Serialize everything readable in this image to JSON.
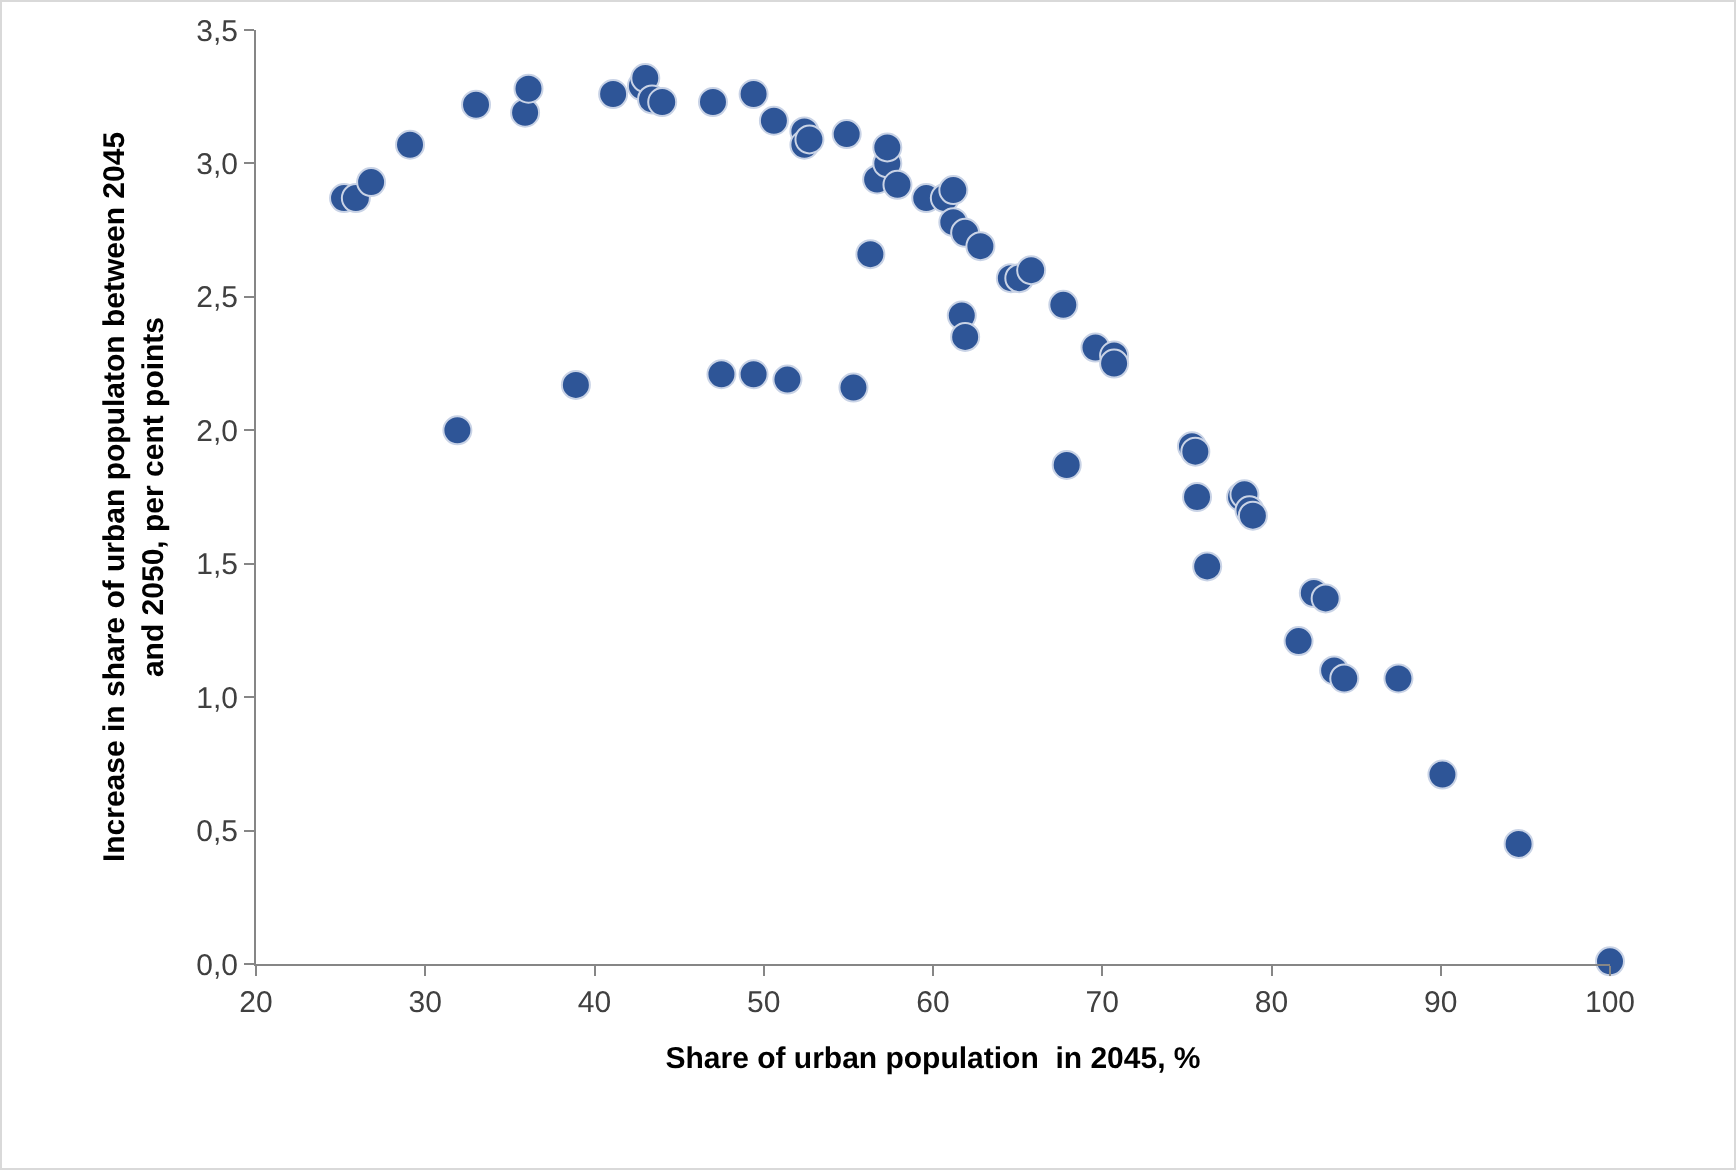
{
  "chart_data": {
    "type": "scatter",
    "xlabel": "Share of urban population  in 2045, %",
    "ylabel": "Increase in share of urban populaton between 2045\nand 2050, per cent points",
    "marker": "circle",
    "grid": false,
    "legend": false,
    "x": [
      25.2,
      25.9,
      26.8,
      29.1,
      31.9,
      33.0,
      35.9,
      36.1,
      38.9,
      41.1,
      42.8,
      43.0,
      43.4,
      44.0,
      47.0,
      47.5,
      49.4,
      49.4,
      50.6,
      51.4,
      52.4,
      52.4,
      52.7,
      54.9,
      55.3,
      56.3,
      56.7,
      57.3,
      57.3,
      57.9,
      59.6,
      60.7,
      61.2,
      61.2,
      61.7,
      61.9,
      61.9,
      62.8,
      64.6,
      65.1,
      65.8,
      67.7,
      67.9,
      69.6,
      70.7,
      70.7,
      75.3,
      75.5,
      75.6,
      76.2,
      78.2,
      78.4,
      78.7,
      78.9,
      81.6,
      82.5,
      83.2,
      83.7,
      84.3,
      87.5,
      90.1,
      94.6,
      100.0
    ],
    "series": [
      {
        "color": "#2e5597",
        "values": [
          2.87,
          2.87,
          2.93,
          3.07,
          2.0,
          3.22,
          3.19,
          3.28,
          2.17,
          3.26,
          3.29,
          3.32,
          3.24,
          3.23,
          3.23,
          2.21,
          3.26,
          2.21,
          3.16,
          2.19,
          3.12,
          3.07,
          3.09,
          3.11,
          2.16,
          2.66,
          2.94,
          3.0,
          3.06,
          2.92,
          2.87,
          2.87,
          2.9,
          2.78,
          2.43,
          2.35,
          2.74,
          2.69,
          2.57,
          2.57,
          2.6,
          2.47,
          1.87,
          2.31,
          2.28,
          2.25,
          1.94,
          1.92,
          1.75,
          1.49,
          1.75,
          1.76,
          1.7,
          1.68,
          1.21,
          1.39,
          1.37,
          1.1,
          1.07,
          1.07,
          0.71,
          0.45,
          0.01
        ]
      }
    ],
    "xlim": [
      20,
      100
    ],
    "xticks": [
      20,
      30,
      40,
      50,
      60,
      70,
      80,
      90,
      100
    ],
    "ylim": [
      0,
      3.5
    ],
    "yticks": [
      {
        "value": 0,
        "label": "0,0"
      },
      {
        "value": 0.5,
        "label": "0,5"
      },
      {
        "value": 1,
        "label": "1,0"
      },
      {
        "value": 1.5,
        "label": "1,5"
      },
      {
        "value": 2,
        "label": "2,0"
      },
      {
        "value": 2.5,
        "label": "2,5"
      },
      {
        "value": 3,
        "label": "3,0"
      },
      {
        "value": 3.5,
        "label": "3,5"
      }
    ]
  }
}
